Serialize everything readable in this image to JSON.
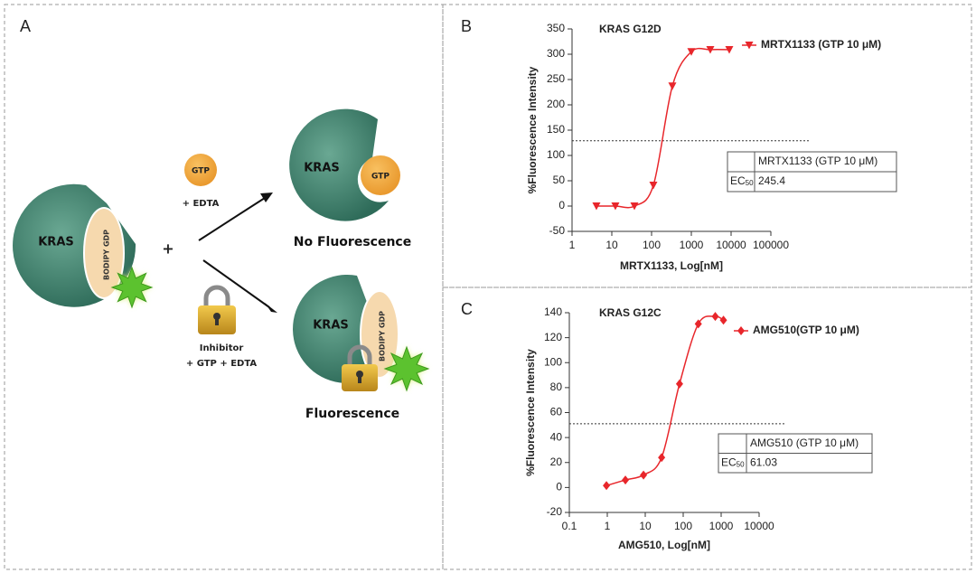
{
  "diagram": {
    "label": "A",
    "kras_left": "KRAS",
    "bodipy_left": "BODIPY GDP",
    "plus": "+",
    "gtp": "GTP",
    "edta": "+ EDTA",
    "kras_top": "KRAS",
    "gtp_bound": "GTP",
    "no_fluorescence": "No Fluorescence",
    "inhibitor": "Inhibitor",
    "inhibitor_mix": "+ GTP + EDTA",
    "kras_bottom": "KRAS",
    "bodipy_bottom": "BODIPY GDP",
    "fluorescence": "Fluorescence"
  },
  "chart_data": [
    {
      "type": "scatter",
      "panel": "B",
      "title": "KRAS G12D",
      "xlabel": "MRTX1133, Log[nM]",
      "ylabel": "%Fluorescence Intensity",
      "xscale": "log",
      "xlim": [
        1,
        100000
      ],
      "xticks": [
        1,
        10,
        100,
        1000,
        10000,
        100000
      ],
      "ylim": [
        -50,
        350
      ],
      "yticks": [
        -50,
        0,
        50,
        100,
        150,
        200,
        250,
        300,
        350
      ],
      "series": [
        {
          "name": "MRTX1133 (GTP 10 μM)",
          "color": "#e8262b",
          "marker": "triangle-down",
          "x": [
            4.1,
            12.3,
            37,
            111,
            333,
            1000,
            3000,
            9000
          ],
          "values": [
            0,
            0,
            0,
            41,
            237,
            305,
            309,
            309
          ]
        }
      ],
      "reference_line": 129,
      "table": {
        "header": "MRTX1133 (GTP 10 μM)",
        "label": "EC",
        "label_sub": "50",
        "value": 245.4
      }
    },
    {
      "type": "scatter",
      "panel": "C",
      "title": "KRAS G12C",
      "xlabel": "AMG510, Log[nM]",
      "ylabel": "%Fluorescence Intensity",
      "xscale": "log",
      "xlim": [
        0.1,
        10000
      ],
      "xticks": [
        0.1,
        1,
        10,
        100,
        1000,
        10000
      ],
      "ylim": [
        -20,
        140
      ],
      "yticks": [
        -20,
        0,
        20,
        40,
        60,
        80,
        100,
        120,
        140
      ],
      "series": [
        {
          "name": "AMG510(GTP 10 μM)",
          "color": "#e8262b",
          "marker": "diamond",
          "x": [
            0.95,
            3,
            9,
            27,
            80,
            250,
            700,
            1150
          ],
          "values": [
            1.5,
            6,
            10,
            24,
            83,
            131,
            137,
            134
          ]
        }
      ],
      "reference_line": 51,
      "table": {
        "header": "AMG510 (GTP 10 μM)",
        "label": "EC",
        "label_sub": "50",
        "value": 61.03
      }
    }
  ]
}
